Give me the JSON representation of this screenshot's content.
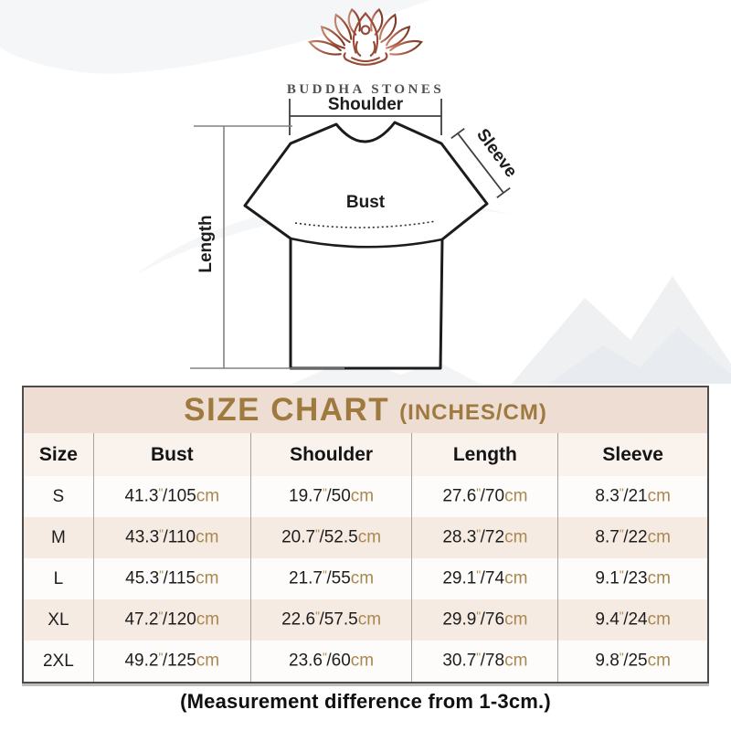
{
  "brand": {
    "name": "BUDDHA STONES",
    "logo_icon": "lotus-meditation-icon"
  },
  "diagram": {
    "shoulder_label": "Shoulder",
    "sleeve_label": "Sleeve",
    "bust_label": "Bust",
    "length_label": "Length"
  },
  "size_chart": {
    "title": "SIZE CHART",
    "subtitle": "(INCHES/CM)",
    "columns": [
      "Size",
      "Bust",
      "Shoulder",
      "Length",
      "Sleeve"
    ],
    "unit_inch": "\"",
    "unit_cm": "cm",
    "rows": [
      {
        "size": "S",
        "measures": [
          {
            "in": "41.3",
            "cm": "105"
          },
          {
            "in": "19.7",
            "cm": "50"
          },
          {
            "in": "27.6",
            "cm": "70"
          },
          {
            "in": "8.3",
            "cm": "21"
          }
        ]
      },
      {
        "size": "M",
        "measures": [
          {
            "in": "43.3",
            "cm": "110"
          },
          {
            "in": "20.7",
            "cm": "52.5"
          },
          {
            "in": "28.3",
            "cm": "72"
          },
          {
            "in": "8.7",
            "cm": "22"
          }
        ]
      },
      {
        "size": "L",
        "measures": [
          {
            "in": "45.3",
            "cm": "115"
          },
          {
            "in": "21.7",
            "cm": "55"
          },
          {
            "in": "29.1",
            "cm": "74"
          },
          {
            "in": "9.1",
            "cm": "23"
          }
        ]
      },
      {
        "size": "XL",
        "measures": [
          {
            "in": "47.2",
            "cm": "120"
          },
          {
            "in": "22.6",
            "cm": "57.5"
          },
          {
            "in": "29.9",
            "cm": "76"
          },
          {
            "in": "9.4",
            "cm": "24"
          }
        ]
      },
      {
        "size": "2XL",
        "measures": [
          {
            "in": "49.2",
            "cm": "125"
          },
          {
            "in": "23.6",
            "cm": "60"
          },
          {
            "in": "30.7",
            "cm": "78"
          },
          {
            "in": "9.8",
            "cm": "25"
          }
        ]
      }
    ]
  },
  "footer_note": "(Measurement difference from 1-3cm.)",
  "colors": {
    "accent_gold": "#9e7a3e",
    "unit_gold": "#a9874f",
    "title_band_bg": "#eeddd2",
    "header_row_bg": "#f9f2ed",
    "alt_row_bg": "#f6ebe3",
    "row_bg": "#fdfcfa",
    "table_border": "#4c4c4c",
    "logo_gradient_start": "#c4876f",
    "logo_gradient_end": "#7b3a28",
    "brand_text": "#4f4f4f"
  },
  "chart_data": {
    "type": "table",
    "title": "SIZE CHART (INCHES/CM)",
    "columns": [
      "Size",
      "Bust",
      "Shoulder",
      "Length",
      "Sleeve"
    ],
    "rows": [
      [
        "S",
        "41.3\"/105cm",
        "19.7\"/50cm",
        "27.6\"/70cm",
        "8.3\"/21cm"
      ],
      [
        "M",
        "43.3\"/110cm",
        "20.7\"/52.5cm",
        "28.3\"/72cm",
        "8.7\"/22cm"
      ],
      [
        "L",
        "45.3\"/115cm",
        "21.7\"/55cm",
        "29.1\"/74cm",
        "9.1\"/23cm"
      ],
      [
        "XL",
        "47.2\"/120cm",
        "22.6\"/57.5cm",
        "29.9\"/76cm",
        "9.4\"/24cm"
      ],
      [
        "2XL",
        "49.2\"/125cm",
        "23.6\"/60cm",
        "30.7\"/78cm",
        "9.8\"/25cm"
      ]
    ],
    "note": "(Measurement difference from 1-3cm.)"
  }
}
